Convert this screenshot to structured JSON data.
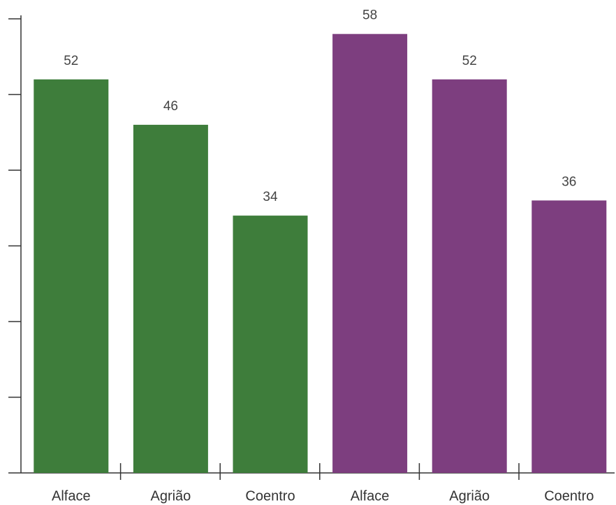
{
  "chart_data": {
    "type": "bar",
    "categories": [
      "Alface",
      "Agrião",
      "Coentro",
      "Alface",
      "Agrião",
      "Coentro"
    ],
    "values": [
      52,
      46,
      34,
      58,
      52,
      36
    ],
    "colors": [
      "#3e7d3b",
      "#3e7d3b",
      "#3e7d3b",
      "#7d3e7f",
      "#7d3e7f",
      "#7d3e7f"
    ],
    "ylim": [
      0,
      60
    ],
    "yticks": [
      0,
      10,
      20,
      30,
      40,
      50,
      60
    ],
    "grid": false
  }
}
